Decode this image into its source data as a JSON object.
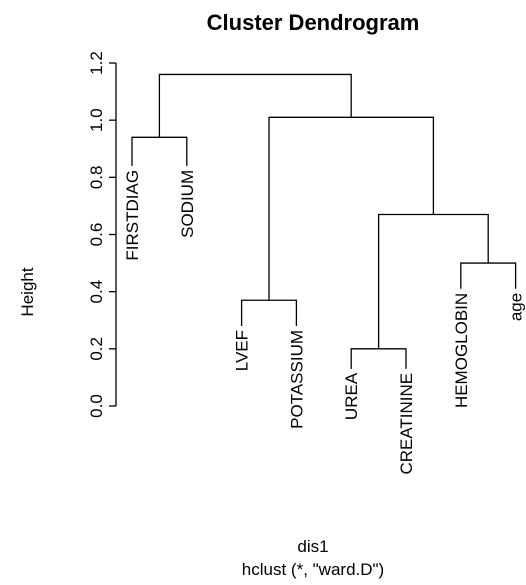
{
  "chart_data": {
    "type": "dendrogram",
    "title": "Cluster Dendrogram",
    "xlabel": "dis1",
    "sublabel": "hclust (*, \"ward.D\")",
    "ylabel": "Height",
    "ylim": [
      0,
      1.2
    ],
    "yticks": [
      {
        "value": 0.0,
        "label": "0.0"
      },
      {
        "value": 0.2,
        "label": "0.2"
      },
      {
        "value": 0.4,
        "label": "0.4"
      },
      {
        "value": 0.6,
        "label": "0.6"
      },
      {
        "value": 0.8,
        "label": "0.8"
      },
      {
        "value": 1.0,
        "label": "1.0"
      },
      {
        "value": 1.2,
        "label": "1.2"
      }
    ],
    "leaves": [
      {
        "label": "FIRSTDIAG",
        "height": 0.84
      },
      {
        "label": "SODIUM",
        "height": 0.84
      },
      {
        "label": "LVEF",
        "height": 0.28
      },
      {
        "label": "POTASSIUM",
        "height": 0.28
      },
      {
        "label": "UREA",
        "height": 0.13
      },
      {
        "label": "CREATININE",
        "height": 0.13
      },
      {
        "label": "HEMOGLOBIN",
        "height": 0.41
      },
      {
        "label": "age",
        "height": 0.41
      }
    ],
    "merges": [
      {
        "left": 0,
        "right": 1,
        "height": 0.94
      },
      {
        "left": 2,
        "right": 3,
        "height": 0.37
      },
      {
        "left": 4,
        "right": 5,
        "height": 0.2
      },
      {
        "left": 6,
        "right": 7,
        "height": 0.5
      },
      {
        "left": "m3",
        "right": "m4",
        "height": 0.67
      },
      {
        "left": "m2",
        "right": "m5",
        "height": 1.01
      },
      {
        "left": "m1",
        "right": "m6",
        "height": 1.16
      }
    ]
  }
}
